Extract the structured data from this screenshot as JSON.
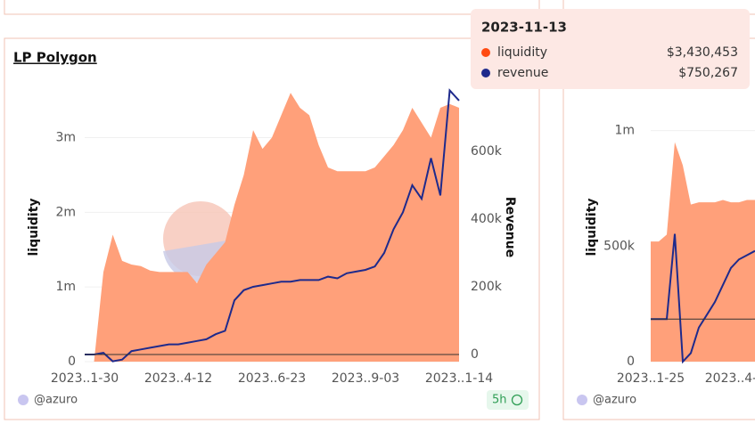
{
  "chart_data": [
    {
      "type": "area-line",
      "title": "LP Polygon",
      "watermark": "Dune",
      "author": "@azuro",
      "updated": "5h",
      "y_label": "liquidity",
      "y2_label": "Revenue",
      "categories": [
        "2023..1-30",
        null,
        null,
        null,
        null,
        null,
        null,
        null,
        null,
        null,
        "2023..4-12",
        null,
        null,
        null,
        null,
        null,
        null,
        null,
        null,
        null,
        "2023..6-23",
        null,
        null,
        null,
        null,
        null,
        null,
        null,
        null,
        null,
        "2023..9-03",
        null,
        null,
        null,
        null,
        null,
        null,
        null,
        null,
        null,
        "2023..1-14"
      ],
      "series": [
        {
          "name": "liquidity",
          "color": "#ffa07a",
          "axis": "y",
          "values": [
            0,
            0,
            1200000,
            1700000,
            1350000,
            1300000,
            1280000,
            1220000,
            1200000,
            1200000,
            1200000,
            1200000,
            1050000,
            1300000,
            1450000,
            1600000,
            2100000,
            2500000,
            3100000,
            2850000,
            3000000,
            3300000,
            3600000,
            3400000,
            3300000,
            2900000,
            2600000,
            2550000,
            2550000,
            2550000,
            2550000,
            2600000,
            2750000,
            2900000,
            3100000,
            3400000,
            3200000,
            3000000,
            3400000,
            3450000,
            3400000
          ]
        },
        {
          "name": "revenue",
          "color": "#1e2a8c",
          "axis": "y2",
          "values": [
            0,
            0,
            5000,
            -20000,
            -15000,
            10000,
            15000,
            20000,
            25000,
            30000,
            30000,
            35000,
            40000,
            45000,
            60000,
            70000,
            160000,
            190000,
            200000,
            205000,
            210000,
            215000,
            215000,
            220000,
            220000,
            220000,
            230000,
            225000,
            240000,
            245000,
            250000,
            260000,
            300000,
            370000,
            420000,
            500000,
            460000,
            580000,
            470000,
            780000,
            750000
          ]
        }
      ],
      "ylim": [
        0,
        3650000
      ],
      "yticks": [
        0,
        {
          "value": 1000000,
          "label": "1m"
        },
        {
          "value": 2000000,
          "label": "2m"
        },
        {
          "value": 3000000,
          "label": "3m"
        }
      ],
      "y2lim": [
        -21000,
        784000
      ],
      "y2ticks": [
        0,
        {
          "value": 200000,
          "label": "200k"
        },
        {
          "value": 400000,
          "label": "400k"
        },
        {
          "value": 600000,
          "label": "600k"
        }
      ],
      "tooltip": {
        "date": "2023-11-13",
        "values": [
          "$3,430,453",
          "$750,267"
        ]
      }
    },
    {
      "type": "area-line",
      "author": "@azuro",
      "y_label": "liquidity",
      "categories": [
        "2023..1-25",
        null,
        null,
        null,
        null,
        null,
        null,
        null,
        null,
        null,
        "2023..4-",
        null,
        null,
        null
      ],
      "series": [
        {
          "name": "liquidity",
          "color": "#ffa07a",
          "axis": "y",
          "values": [
            520000,
            520000,
            550000,
            950000,
            850000,
            680000,
            690000,
            690000,
            690000,
            700000,
            690000,
            690000,
            700000,
            700000
          ]
        },
        {
          "name": "revenue",
          "color": "#1e2a8c",
          "axis": "y2",
          "values": [
            0,
            0,
            0,
            100000,
            -50000,
            -40000,
            -10000,
            5000,
            20000,
            40000,
            60000,
            70000,
            75000,
            80000
          ]
        }
      ],
      "ylim": [
        0,
        1180000
      ],
      "yticks": [
        0,
        {
          "value": 500000,
          "label": "500k"
        },
        {
          "value": 1000000,
          "label": "1m"
        }
      ],
      "y2lim": [
        -50000,
        270000
      ]
    }
  ]
}
